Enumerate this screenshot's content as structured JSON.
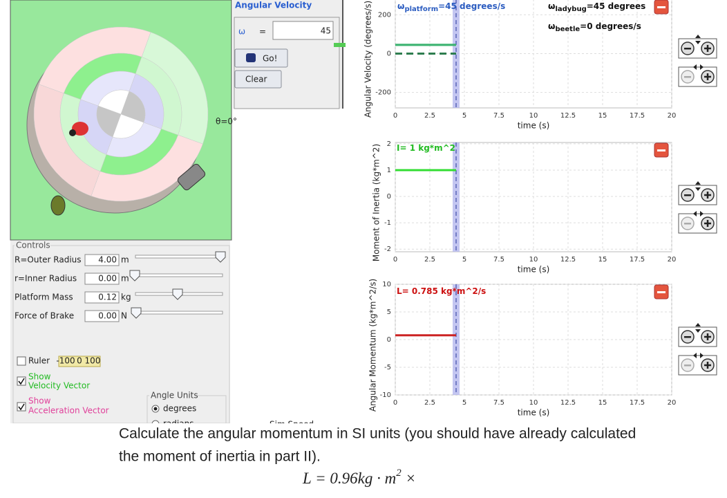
{
  "simulation": {
    "angular_velocity": {
      "title": "Angular Velocity",
      "symbol": "ω",
      "equals": "=",
      "value": "45",
      "go": "Go!",
      "clear": "Clear"
    },
    "platform_angle_label": "θ=0°",
    "controls": {
      "title": "Controls",
      "rows": [
        {
          "label": "R=Outer Radius",
          "value": "4.00",
          "unit": "m"
        },
        {
          "label": "r=Inner Radius",
          "value": "0.00",
          "unit": "m"
        },
        {
          "label": "Platform Mass",
          "value": "0.12",
          "unit": "kg"
        },
        {
          "label": "Force of Brake",
          "value": "0.00",
          "unit": "N"
        }
      ],
      "ruler": "Ruler",
      "ruler_ticks": [
        "-100",
        "0",
        "100"
      ],
      "show_velocity": [
        "Show",
        "Velocity Vector"
      ],
      "show_acceleration": [
        "Show",
        "Acceleration Vector"
      ],
      "angle_units": {
        "title": "Angle Units",
        "options": [
          "degrees",
          "radians"
        ]
      },
      "sim_speed": "Sim Speed"
    }
  },
  "chart_data": [
    {
      "type": "line",
      "ylabel": "Angular Velocity (degrees/s)",
      "xlabel": "time (s)",
      "xlim": [
        0,
        20
      ],
      "xticks": [
        0,
        2.5,
        5,
        7.5,
        10,
        12.5,
        15,
        17.5,
        20
      ],
      "ylim": [
        -280,
        280
      ],
      "yticks": [
        -200,
        0,
        200
      ],
      "grid": true,
      "time_marker": 4.4,
      "legend_symbol": "ω",
      "series": [
        {
          "name": "platform",
          "label": "=45 degrees/s",
          "color": "#3cb371",
          "style": "solid",
          "x": [
            0,
            4.4
          ],
          "values": [
            45,
            45
          ]
        },
        {
          "name": "ladybug",
          "label": "=45 degrees",
          "color": "#3cb371",
          "style": "solid",
          "x": [
            0,
            4.4
          ],
          "values": [
            45,
            45
          ]
        },
        {
          "name": "beetle",
          "label": "=0 degrees/s",
          "color": "#2e7d4f",
          "style": "dashed",
          "x": [
            0,
            4.4
          ],
          "values": [
            0,
            0
          ]
        }
      ]
    },
    {
      "type": "line",
      "ylabel": "Moment of Inertia (kg*m^2)",
      "xlabel": "time (s)",
      "xlim": [
        0,
        20
      ],
      "xticks": [
        0,
        2.5,
        5,
        7.5,
        10,
        12.5,
        15,
        17.5,
        20
      ],
      "ylim": [
        -2.1,
        2.05
      ],
      "yticks": [
        -2,
        -1,
        0,
        1,
        2
      ],
      "grid": true,
      "time_marker": 4.4,
      "series": [
        {
          "name": "I",
          "label": "= 1 kg*m^2",
          "color": "#33dd33",
          "style": "solid",
          "x": [
            0,
            4.4
          ],
          "values": [
            1,
            1
          ]
        }
      ]
    },
    {
      "type": "line",
      "ylabel": "Angular Momentum (kg*m^2/s)",
      "xlabel": "time (s)",
      "xlim": [
        0,
        20
      ],
      "xticks": [
        0,
        2.5,
        5,
        7.5,
        10,
        12.5,
        15,
        17.5,
        20
      ],
      "ylim": [
        -10,
        10
      ],
      "yticks": [
        -10,
        -5,
        0,
        5,
        10
      ],
      "grid": true,
      "time_marker": 4.4,
      "series": [
        {
          "name": "L",
          "label": "= 0.785 kg*m^2/s",
          "color": "#cc2222",
          "style": "solid",
          "x": [
            0,
            4.4
          ],
          "values": [
            0.785,
            0.785
          ]
        }
      ]
    }
  ],
  "document": {
    "paragraph": [
      "Calculate the angular momentum in SI units (you should have already calculated",
      "the moment of inertia in part II)."
    ],
    "equation": {
      "text": "L = 0.96kg · m",
      "superscript": "2",
      "after": " ×"
    }
  }
}
